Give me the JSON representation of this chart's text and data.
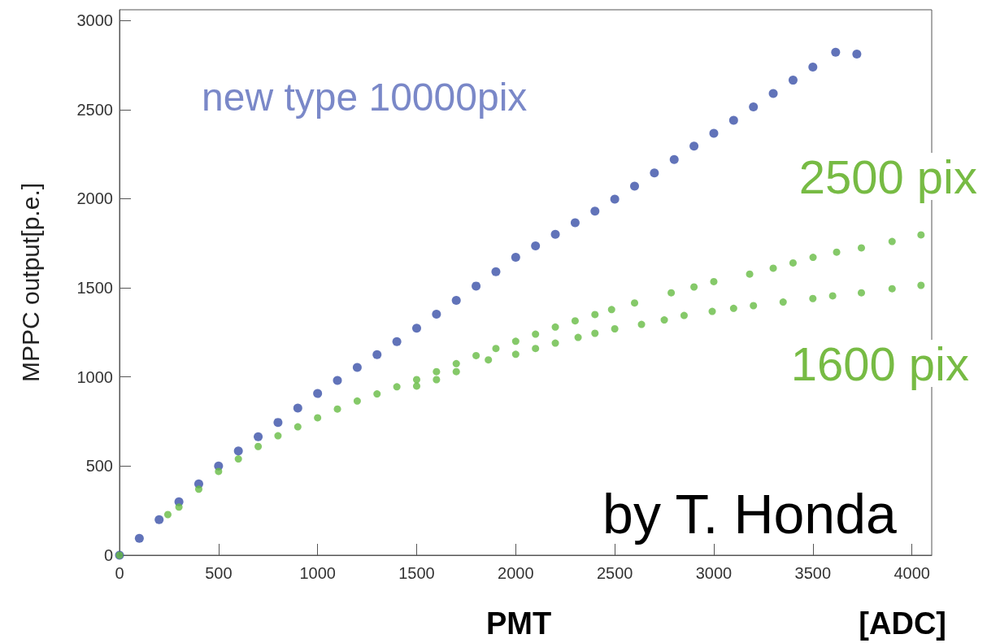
{
  "chart_data": {
    "type": "scatter",
    "xlabel": "PMT",
    "ylabel": "MPPC output[p.e.]",
    "annotations": [
      "by T. Honda",
      "[ADC]"
    ],
    "xlim": [
      0,
      4100
    ],
    "xticks": [
      0,
      500,
      1000,
      1500,
      2000,
      2500,
      3000,
      3500,
      4000
    ],
    "ylim": [
      0,
      3060
    ],
    "yticks": [
      0,
      500,
      1000,
      1500,
      2000,
      2500,
      3000
    ],
    "grid": false,
    "legend": false,
    "marker": "circle",
    "series": [
      {
        "name": "new type 10000pix",
        "color": "#3a50a8",
        "x": [
          0,
          100,
          200,
          300,
          400,
          500,
          600,
          700,
          800,
          900,
          1000,
          1100,
          1200,
          1300,
          1400,
          1500,
          1600,
          1700,
          1800,
          1900,
          2000,
          2100,
          2200,
          2300,
          2400,
          2500,
          2600,
          2700,
          2800,
          2900,
          3000,
          3100,
          3200,
          3300,
          3400,
          3500,
          3615,
          3722
        ],
        "values": [
          0,
          95,
          200,
          300,
          400,
          500,
          585,
          665,
          745,
          825,
          907,
          980,
          1053,
          1125,
          1198,
          1273,
          1352,
          1430,
          1510,
          1590,
          1671,
          1735,
          1800,
          1865,
          1930,
          1997,
          2070,
          2145,
          2220,
          2295,
          2367,
          2440,
          2515,
          2590,
          2665,
          2738,
          2822,
          2811
        ]
      },
      {
        "name": "2500 pix",
        "color": "#66bb44",
        "x": [
          0,
          244,
          300,
          400,
          500,
          600,
          700,
          800,
          900,
          1000,
          1100,
          1200,
          1300,
          1400,
          1500,
          1600,
          1700,
          1800,
          1900,
          2000,
          2100,
          2200,
          2300,
          2400,
          2484,
          2600,
          2785,
          2900,
          3000,
          3181,
          3300,
          3400,
          3501,
          3620,
          3745,
          3900,
          4046
        ],
        "values": [
          0,
          228,
          270,
          370,
          470,
          540,
          610,
          670,
          720,
          771,
          820,
          865,
          905,
          945,
          985,
          1030,
          1075,
          1120,
          1160,
          1200,
          1240,
          1280,
          1315,
          1350,
          1378,
          1415,
          1472,
          1505,
          1535,
          1577,
          1610,
          1640,
          1671,
          1700,
          1724,
          1760,
          1797
        ]
      },
      {
        "name": "1600 pix",
        "color": "#66bb44",
        "x": [
          1500,
          1600,
          1700,
          1862,
          2000,
          2100,
          2200,
          2315,
          2400,
          2500,
          2635,
          2750,
          2850,
          2992,
          3100,
          3200,
          3350,
          3500,
          3600,
          3745,
          3900,
          4046
        ],
        "values": [
          949,
          985,
          1030,
          1096,
          1127,
          1160,
          1190,
          1222,
          1245,
          1270,
          1295,
          1320,
          1345,
          1368,
          1385,
          1400,
          1420,
          1440,
          1455,
          1472,
          1495,
          1514
        ]
      }
    ]
  }
}
